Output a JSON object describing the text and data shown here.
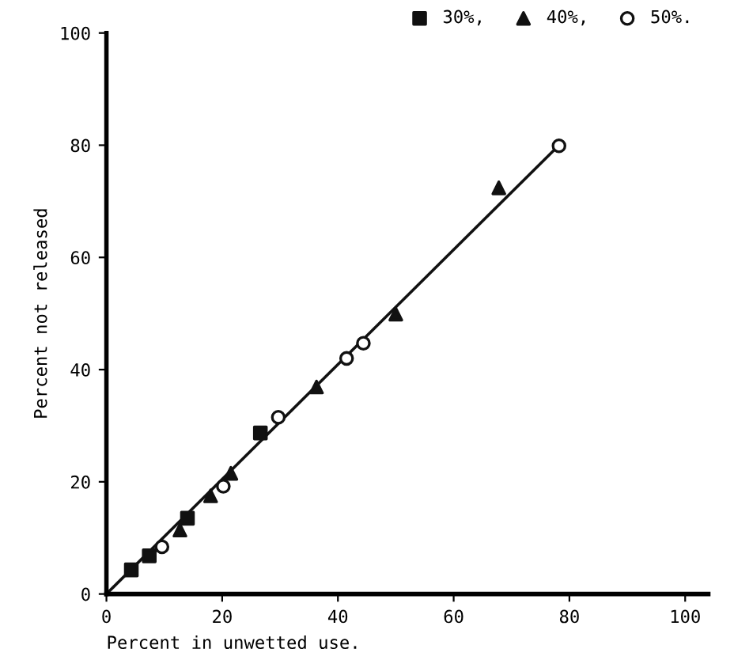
{
  "chart_data": {
    "type": "scatter",
    "xlabel": "Percent in unwetted use.",
    "ylabel": "Percent not released",
    "xlim": [
      0,
      104
    ],
    "ylim": [
      0,
      100
    ],
    "xticks": [
      0,
      20,
      40,
      60,
      80,
      100
    ],
    "yticks": [
      0,
      20,
      40,
      60,
      80,
      100
    ],
    "grid": false,
    "legend": "top right",
    "series": [
      {
        "name": "30%,",
        "color": "#111111",
        "marker": "square",
        "x": [
          4.3,
          7.4,
          14,
          26.6
        ],
        "values": [
          4.3,
          6.8,
          13.5,
          28.7
        ]
      },
      {
        "name": "40%,",
        "color": "#111111",
        "marker": "triangle",
        "x": [
          12.7,
          18,
          21.5,
          36.3,
          50,
          67.8
        ],
        "values": [
          11.4,
          17.5,
          21.5,
          36.9,
          49.9,
          72.4
        ]
      },
      {
        "name": "50%.",
        "color": "#111111",
        "marker": "circle",
        "x": [
          9.6,
          20.2,
          29.7,
          41.5,
          44.4,
          78.2
        ],
        "values": [
          8.4,
          19.2,
          31.5,
          42,
          44.7,
          79.9
        ]
      },
      {
        "type": "line",
        "color": "#111111",
        "marker": "none",
        "x": [
          0,
          78.2
        ],
        "values": [
          0,
          80
        ]
      }
    ]
  }
}
